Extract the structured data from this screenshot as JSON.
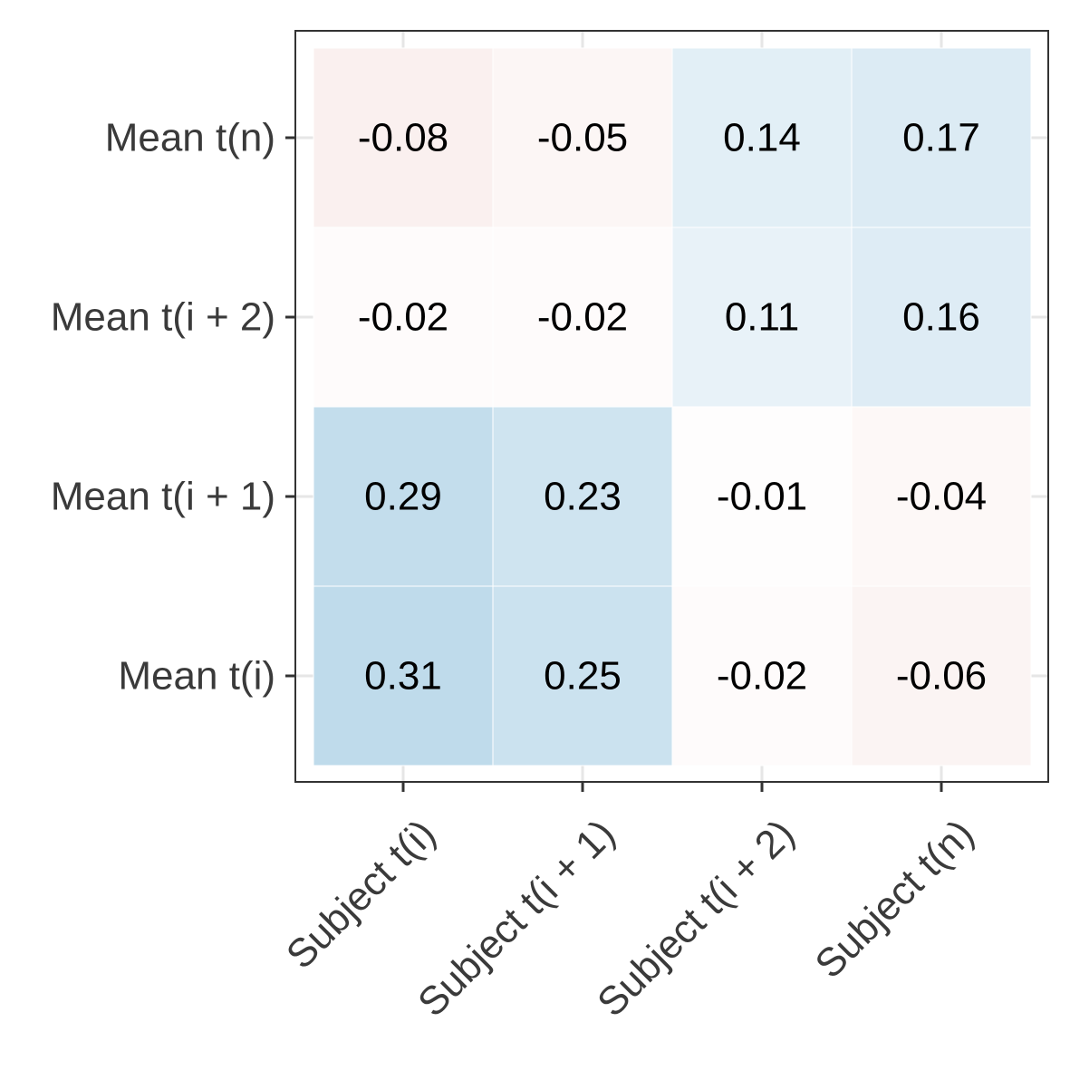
{
  "chart_data": {
    "type": "heatmap",
    "title": "",
    "xlabel": "",
    "ylabel": "",
    "x_categories": [
      "Subject t(i)",
      "Subject t(i + 1)",
      "Subject t(i + 2)",
      "Subject t(n)"
    ],
    "y_categories": [
      "Mean t(i)",
      "Mean t(i + 1)",
      "Mean t(i + 2)",
      "Mean t(n)"
    ],
    "values": [
      [
        0.31,
        0.25,
        -0.02,
        -0.06
      ],
      [
        0.29,
        0.23,
        -0.01,
        -0.04
      ],
      [
        -0.02,
        -0.02,
        0.11,
        0.16
      ],
      [
        -0.08,
        -0.05,
        0.14,
        0.17
      ]
    ],
    "value_labels": [
      [
        "0.31",
        "0.25",
        "-0.02",
        "-0.06"
      ],
      [
        "0.29",
        "0.23",
        "-0.01",
        "-0.04"
      ],
      [
        "-0.02",
        "-0.02",
        "0.11",
        "0.16"
      ],
      [
        "-0.08",
        "-0.05",
        "0.14",
        "0.17"
      ]
    ],
    "color_scale": {
      "negative": "#c2473a",
      "midpoint": "#ffffff",
      "positive": "#2f8bbf",
      "limit": 1
    },
    "grid": true,
    "legend": "none"
  }
}
